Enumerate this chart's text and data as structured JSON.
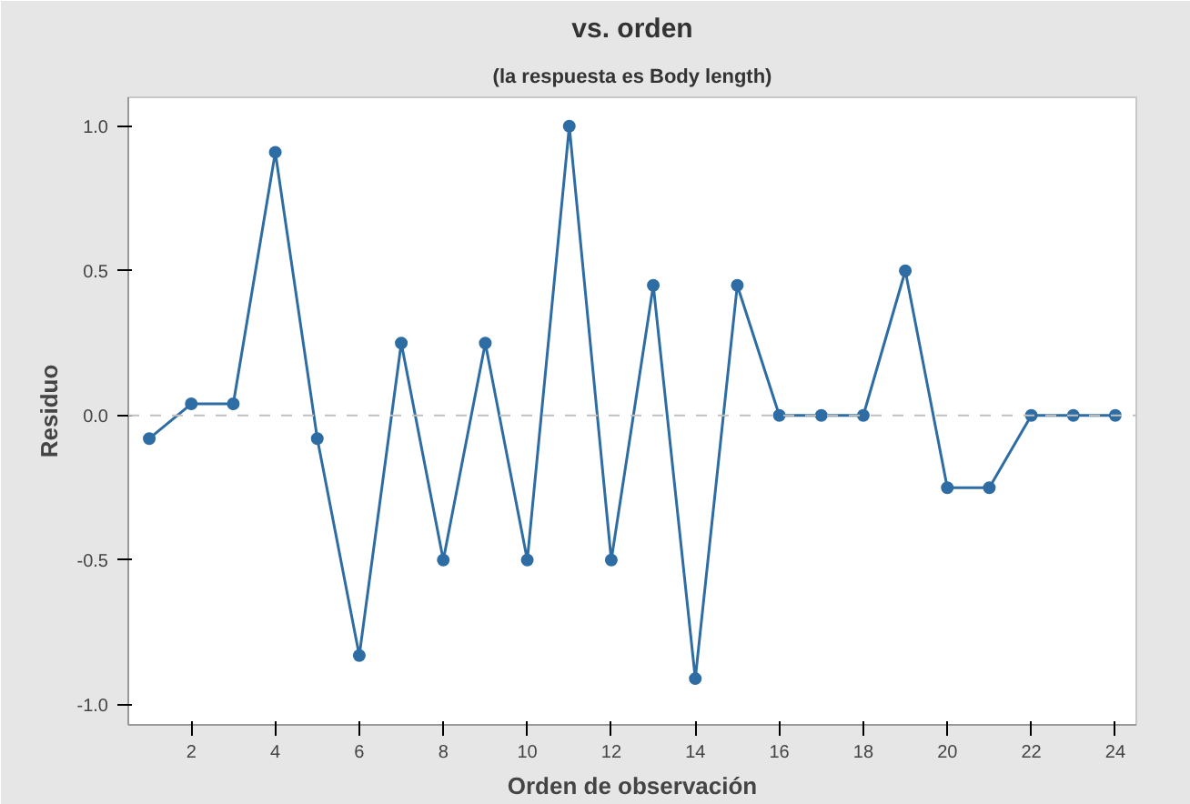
{
  "chart_data": {
    "type": "line",
    "title": "vs. orden",
    "subtitle": "(la respuesta es Body length)",
    "xlabel": "Orden de observación",
    "ylabel": "Residuo",
    "x": [
      1,
      2,
      3,
      4,
      5,
      6,
      7,
      8,
      9,
      10,
      11,
      12,
      13,
      14,
      15,
      16,
      17,
      18,
      19,
      20,
      21,
      22,
      23,
      24
    ],
    "series": [
      {
        "color": "#2e6da4",
        "values": [
          -0.08,
          0.04,
          0.04,
          0.91,
          -0.08,
          -0.83,
          0.25,
          -0.5,
          0.25,
          -0.5,
          1.0,
          -0.5,
          0.45,
          -0.91,
          0.45,
          0,
          0,
          0,
          0.5,
          -0.25,
          -0.25,
          0,
          0,
          0
        ]
      }
    ],
    "xlim": [
      0.5,
      24.5
    ],
    "ylim": [
      -1.07,
      1.1
    ],
    "xticks": [
      2,
      4,
      6,
      8,
      10,
      12,
      14,
      16,
      18,
      20,
      22,
      24
    ],
    "yticks": [
      {
        "value": -1.0,
        "label": "-1.0"
      },
      {
        "value": -0.5,
        "label": "-0.5"
      },
      {
        "value": 0,
        "label": "0.0"
      },
      {
        "value": 0.5,
        "label": "0.5"
      },
      {
        "value": 1.0,
        "label": "1.0"
      }
    ],
    "ref_lines": [
      {
        "axis": "y",
        "value": 0,
        "color": "#c0c0c0",
        "line_style": "dashed"
      }
    ],
    "marker": "circle",
    "line_style": "solid",
    "grid": false
  }
}
